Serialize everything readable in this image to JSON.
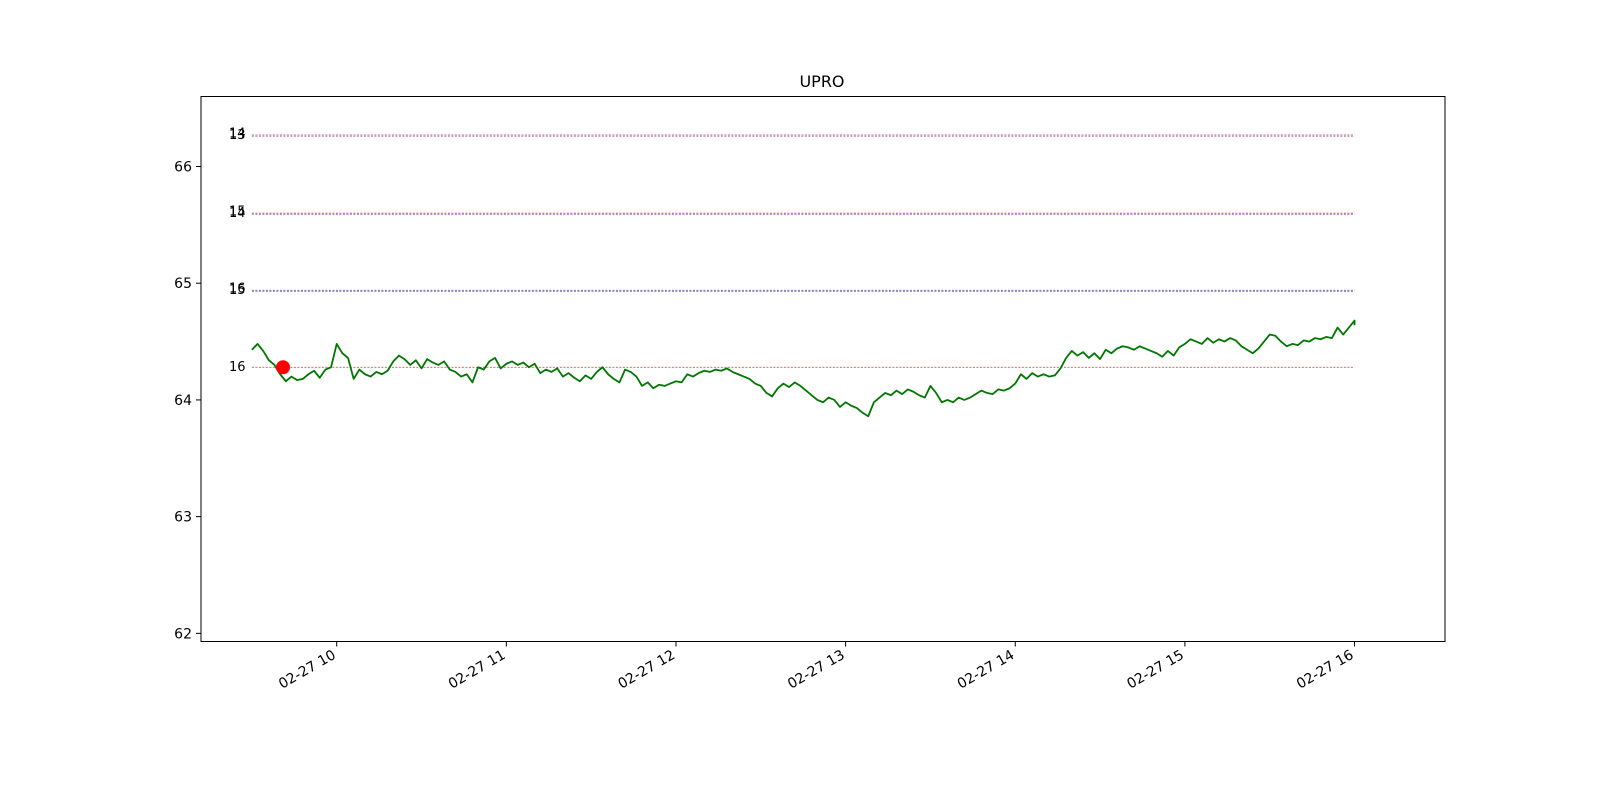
{
  "chart_data": {
    "type": "line",
    "title": "UPRO",
    "xlabel": "",
    "ylabel": "",
    "date": "2024-02-27",
    "xlim": [
      "09:12",
      "16:32"
    ],
    "ylim": [
      61.93,
      66.6
    ],
    "grid": false,
    "y_ticks": [
      62,
      63,
      64,
      65,
      66
    ],
    "x_ticks": [
      {
        "time": "10:00",
        "label": "02-27 10"
      },
      {
        "time": "11:00",
        "label": "02-27 11"
      },
      {
        "time": "12:00",
        "label": "02-27 12"
      },
      {
        "time": "13:00",
        "label": "02-27 13"
      },
      {
        "time": "14:00",
        "label": "02-27 14"
      },
      {
        "time": "15:00",
        "label": "02-27 15"
      },
      {
        "time": "16:00",
        "label": "02-27 16"
      }
    ],
    "series": [
      {
        "color": "#007700",
        "points": [
          [
            "09:30",
            64.43
          ],
          [
            "09:32",
            64.48
          ],
          [
            "09:34",
            64.42
          ],
          [
            "09:36",
            64.34
          ],
          [
            "09:38",
            64.3
          ],
          [
            "09:40",
            64.22
          ],
          [
            "09:42",
            64.16
          ],
          [
            "09:44",
            64.2
          ],
          [
            "09:46",
            64.17
          ],
          [
            "09:48",
            64.18
          ],
          [
            "09:50",
            64.22
          ],
          [
            "09:52",
            64.25
          ],
          [
            "09:54",
            64.19
          ],
          [
            "09:56",
            64.26
          ],
          [
            "09:58",
            64.28
          ],
          [
            "10:00",
            64.48
          ],
          [
            "10:02",
            64.4
          ],
          [
            "10:04",
            64.36
          ],
          [
            "10:06",
            64.18
          ],
          [
            "10:08",
            64.26
          ],
          [
            "10:10",
            64.22
          ],
          [
            "10:12",
            64.2
          ],
          [
            "10:14",
            64.24
          ],
          [
            "10:16",
            64.22
          ],
          [
            "10:18",
            64.25
          ],
          [
            "10:20",
            64.33
          ],
          [
            "10:22",
            64.38
          ],
          [
            "10:24",
            64.35
          ],
          [
            "10:26",
            64.3
          ],
          [
            "10:28",
            64.34
          ],
          [
            "10:30",
            64.27
          ],
          [
            "10:32",
            64.35
          ],
          [
            "10:34",
            64.32
          ],
          [
            "10:36",
            64.3
          ],
          [
            "10:38",
            64.33
          ],
          [
            "10:40",
            64.26
          ],
          [
            "10:42",
            64.24
          ],
          [
            "10:44",
            64.2
          ],
          [
            "10:46",
            64.22
          ],
          [
            "10:48",
            64.15
          ],
          [
            "10:50",
            64.28
          ],
          [
            "10:52",
            64.26
          ],
          [
            "10:54",
            64.33
          ],
          [
            "10:56",
            64.36
          ],
          [
            "10:58",
            64.27
          ],
          [
            "11:00",
            64.31
          ],
          [
            "11:02",
            64.33
          ],
          [
            "11:04",
            64.3
          ],
          [
            "11:06",
            64.32
          ],
          [
            "11:08",
            64.28
          ],
          [
            "11:10",
            64.31
          ],
          [
            "11:12",
            64.23
          ],
          [
            "11:14",
            64.26
          ],
          [
            "11:16",
            64.24
          ],
          [
            "11:18",
            64.27
          ],
          [
            "11:20",
            64.2
          ],
          [
            "11:22",
            64.23
          ],
          [
            "11:24",
            64.19
          ],
          [
            "11:26",
            64.16
          ],
          [
            "11:28",
            64.21
          ],
          [
            "11:30",
            64.18
          ],
          [
            "11:32",
            64.24
          ],
          [
            "11:34",
            64.28
          ],
          [
            "11:36",
            64.22
          ],
          [
            "11:38",
            64.18
          ],
          [
            "11:40",
            64.15
          ],
          [
            "11:42",
            64.26
          ],
          [
            "11:44",
            64.24
          ],
          [
            "11:46",
            64.2
          ],
          [
            "11:48",
            64.12
          ],
          [
            "11:50",
            64.15
          ],
          [
            "11:52",
            64.1
          ],
          [
            "11:54",
            64.13
          ],
          [
            "11:56",
            64.12
          ],
          [
            "11:58",
            64.14
          ],
          [
            "12:00",
            64.16
          ],
          [
            "12:02",
            64.15
          ],
          [
            "12:04",
            64.22
          ],
          [
            "12:06",
            64.2
          ],
          [
            "12:08",
            64.23
          ],
          [
            "12:10",
            64.25
          ],
          [
            "12:12",
            64.24
          ],
          [
            "12:14",
            64.26
          ],
          [
            "12:16",
            64.25
          ],
          [
            "12:18",
            64.27
          ],
          [
            "12:20",
            64.24
          ],
          [
            "12:22",
            64.22
          ],
          [
            "12:24",
            64.2
          ],
          [
            "12:26",
            64.18
          ],
          [
            "12:28",
            64.14
          ],
          [
            "12:30",
            64.12
          ],
          [
            "12:32",
            64.06
          ],
          [
            "12:34",
            64.03
          ],
          [
            "12:36",
            64.1
          ],
          [
            "12:38",
            64.14
          ],
          [
            "12:40",
            64.11
          ],
          [
            "12:42",
            64.15
          ],
          [
            "12:44",
            64.12
          ],
          [
            "12:46",
            64.08
          ],
          [
            "12:48",
            64.04
          ],
          [
            "12:50",
            64.0
          ],
          [
            "12:52",
            63.98
          ],
          [
            "12:54",
            64.02
          ],
          [
            "12:56",
            64.0
          ],
          [
            "12:58",
            63.94
          ],
          [
            "13:00",
            63.98
          ],
          [
            "13:02",
            63.95
          ],
          [
            "13:04",
            63.93
          ],
          [
            "13:06",
            63.89
          ],
          [
            "13:08",
            63.86
          ],
          [
            "13:10",
            63.98
          ],
          [
            "13:12",
            64.02
          ],
          [
            "13:14",
            64.06
          ],
          [
            "13:16",
            64.04
          ],
          [
            "13:18",
            64.08
          ],
          [
            "13:20",
            64.05
          ],
          [
            "13:22",
            64.09
          ],
          [
            "13:24",
            64.07
          ],
          [
            "13:26",
            64.04
          ],
          [
            "13:28",
            64.02
          ],
          [
            "13:30",
            64.12
          ],
          [
            "13:32",
            64.06
          ],
          [
            "13:34",
            63.98
          ],
          [
            "13:36",
            64.0
          ],
          [
            "13:38",
            63.98
          ],
          [
            "13:40",
            64.02
          ],
          [
            "13:42",
            64.0
          ],
          [
            "13:44",
            64.02
          ],
          [
            "13:46",
            64.05
          ],
          [
            "13:48",
            64.08
          ],
          [
            "13:50",
            64.06
          ],
          [
            "13:52",
            64.05
          ],
          [
            "13:54",
            64.09
          ],
          [
            "13:56",
            64.08
          ],
          [
            "13:58",
            64.1
          ],
          [
            "14:00",
            64.14
          ],
          [
            "14:02",
            64.22
          ],
          [
            "14:04",
            64.18
          ],
          [
            "14:06",
            64.23
          ],
          [
            "14:08",
            64.2
          ],
          [
            "14:10",
            64.22
          ],
          [
            "14:12",
            64.2
          ],
          [
            "14:14",
            64.21
          ],
          [
            "14:16",
            64.27
          ],
          [
            "14:18",
            64.36
          ],
          [
            "14:20",
            64.42
          ],
          [
            "14:22",
            64.38
          ],
          [
            "14:24",
            64.41
          ],
          [
            "14:26",
            64.36
          ],
          [
            "14:28",
            64.4
          ],
          [
            "14:30",
            64.35
          ],
          [
            "14:32",
            64.43
          ],
          [
            "14:34",
            64.4
          ],
          [
            "14:36",
            64.44
          ],
          [
            "14:38",
            64.46
          ],
          [
            "14:40",
            64.45
          ],
          [
            "14:42",
            64.43
          ],
          [
            "14:44",
            64.46
          ],
          [
            "14:46",
            64.44
          ],
          [
            "14:48",
            64.42
          ],
          [
            "14:50",
            64.4
          ],
          [
            "14:52",
            64.37
          ],
          [
            "14:54",
            64.42
          ],
          [
            "14:56",
            64.38
          ],
          [
            "14:58",
            64.45
          ],
          [
            "15:00",
            64.48
          ],
          [
            "15:02",
            64.52
          ],
          [
            "15:04",
            64.5
          ],
          [
            "15:06",
            64.48
          ],
          [
            "15:08",
            64.53
          ],
          [
            "15:10",
            64.49
          ],
          [
            "15:12",
            64.52
          ],
          [
            "15:14",
            64.5
          ],
          [
            "15:16",
            64.53
          ],
          [
            "15:18",
            64.51
          ],
          [
            "15:20",
            64.46
          ],
          [
            "15:22",
            64.43
          ],
          [
            "15:24",
            64.4
          ],
          [
            "15:26",
            64.44
          ],
          [
            "15:28",
            64.5
          ],
          [
            "15:30",
            64.56
          ],
          [
            "15:32",
            64.55
          ],
          [
            "15:34",
            64.5
          ],
          [
            "15:36",
            64.46
          ],
          [
            "15:38",
            64.48
          ],
          [
            "15:40",
            64.47
          ],
          [
            "15:42",
            64.51
          ],
          [
            "15:44",
            64.5
          ],
          [
            "15:46",
            64.53
          ],
          [
            "15:48",
            64.52
          ],
          [
            "15:50",
            64.54
          ],
          [
            "15:52",
            64.53
          ],
          [
            "15:54",
            64.62
          ],
          [
            "15:56",
            64.56
          ],
          [
            "15:58",
            64.62
          ],
          [
            "16:00",
            64.68
          ],
          [
            "16:00",
            64.64
          ]
        ]
      }
    ],
    "marker": {
      "time": "09:41",
      "value": 64.28,
      "color": "#ff0000"
    },
    "levels": [
      {
        "value": 66.27,
        "color": "#cc3333",
        "labels": [
          "13",
          "14"
        ]
      },
      {
        "value": 65.6,
        "color": "#cc3333",
        "labels": [
          "14",
          "15"
        ]
      },
      {
        "value": 64.94,
        "color": "#3333aa",
        "labels": [
          "15",
          "16"
        ]
      },
      {
        "value": 64.28,
        "color": "#cc3333",
        "labels": [
          "16"
        ]
      }
    ]
  }
}
